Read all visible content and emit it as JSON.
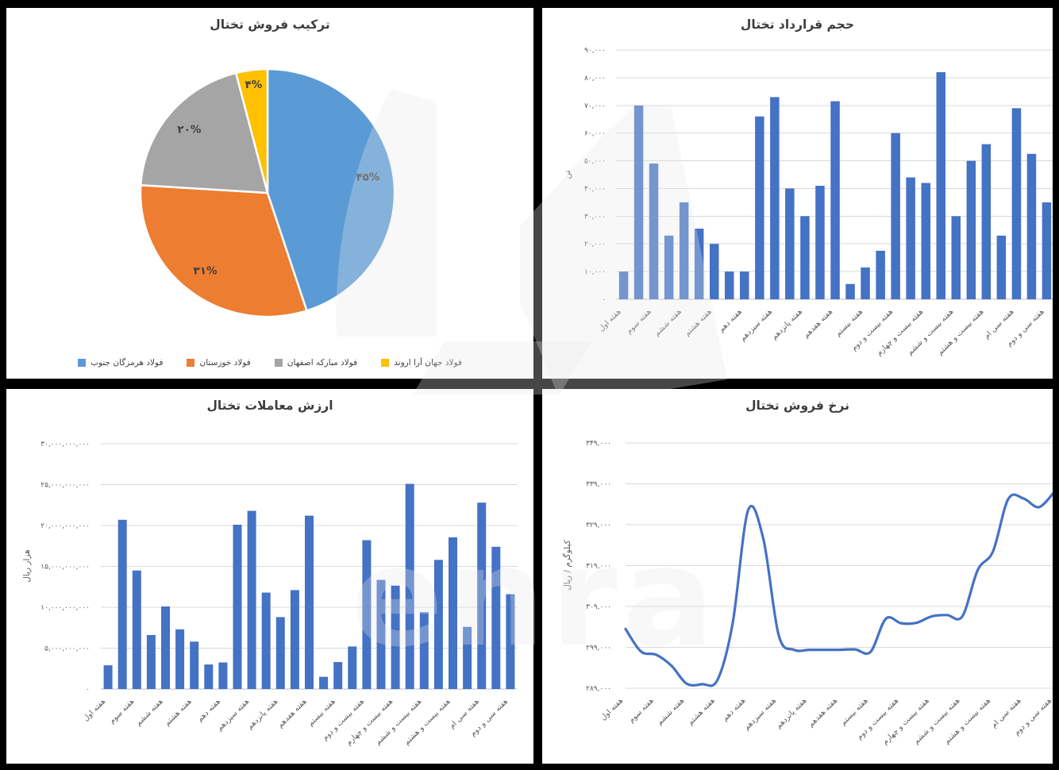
{
  "watermark": {
    "text": "enra"
  },
  "chart_data": [
    {
      "type": "pie",
      "title": "ترکیب فروش تختال",
      "labels": [
        "فولاد هرمزگان جنوب",
        "فولاد خوزستان",
        "فولاد مبارکه اصفهان",
        "فولاد جهان آرا اروند"
      ],
      "values": [
        45,
        31,
        20,
        4
      ],
      "display_labels": [
        "۴۵%",
        "۳۱%",
        "۲۰%",
        "۴%"
      ],
      "colors": [
        "#5B9BD5",
        "#ED7D31",
        "#A5A5A5",
        "#FFC000"
      ],
      "legend_position": "bottom",
      "start_angle_deg": 0,
      "direction": "clockwise"
    },
    {
      "type": "bar",
      "title": "حجم قرارداد تختال",
      "ylabel": "تن",
      "bar_color": "#4472C4",
      "ylim": [
        0,
        90000
      ],
      "grid": true,
      "yticks": [
        "۰",
        "۱۰,۰۰۰",
        "۲۰,۰۰۰",
        "۳۰,۰۰۰",
        "۴۰,۰۰۰",
        "۵۰,۰۰۰",
        "۶۰,۰۰۰",
        "۷۰,۰۰۰",
        "۸۰,۰۰۰",
        "۹۰,۰۰۰"
      ],
      "categories_shown": [
        "هفته اول",
        "هفته سوم",
        "هفته ششم",
        "هفته هشتم",
        "هفته دهم",
        "هفته سیزدهم",
        "هفته پانزدهم",
        "هفته هفدهم",
        "هفته بیستم",
        "هفته بیست و دوم",
        "هفته بیست و چهارم",
        "هفته بیست و ششم",
        "هفته بیست و هشتم",
        "هفته سی ام",
        "هفته سی و دوم"
      ],
      "category_tick_step": 2,
      "values": [
        10000,
        70000,
        49000,
        23000,
        35000,
        25500,
        20000,
        10000,
        10000,
        66000,
        73000,
        40000,
        30000,
        41000,
        71500,
        5500,
        11500,
        17500,
        60000,
        44000,
        42000,
        82000,
        30000,
        50000,
        56000,
        23000,
        69000,
        52500,
        35000
      ]
    },
    {
      "type": "bar",
      "title": "ارزش معاملات تختال",
      "ylabel": "هزار ریال",
      "bar_color": "#4472C4",
      "ylim": [
        0,
        30000000000
      ],
      "grid": true,
      "yticks": [
        "۰",
        "۵,۰۰۰,۰۰۰,۰۰۰",
        "۱۰,۰۰۰,۰۰۰,۰۰۰",
        "۱۵,۰۰۰,۰۰۰,۰۰۰",
        "۲۰,۰۰۰,۰۰۰,۰۰۰",
        "۲۵,۰۰۰,۰۰۰,۰۰۰",
        "۳۰,۰۰۰,۰۰۰,۰۰۰"
      ],
      "categories_shown": [
        "هفته اول",
        "هفته سوم",
        "هفته ششم",
        "هفته هشتم",
        "هفته دهم",
        "هفته سیزدهم",
        "هفته پانزدهم",
        "هفته هفدهم",
        "هفته بیستم",
        "هفته بیست و دوم",
        "هفته بیست و چهارم",
        "هفته بیست و ششم",
        "هفته بیست و هشتم",
        "هفته سی ام",
        "هفته سی و دوم"
      ],
      "category_tick_step": 2,
      "values": [
        2900000000,
        20700000000,
        14500000000,
        6600000000,
        10100000000,
        7300000000,
        5800000000,
        3000000000,
        3250000000,
        20100000000,
        21800000000,
        11800000000,
        8800000000,
        12100000000,
        21200000000,
        1500000000,
        3300000000,
        5200000000,
        18200000000,
        13350000000,
        12650000000,
        25100000000,
        9400000000,
        15800000000,
        18550000000,
        7600000000,
        22800000000,
        17400000000,
        11600000000
      ]
    },
    {
      "type": "line",
      "title": "نرخ فروش تختال",
      "ylabel": "کیلوگرم / ریال",
      "line_color": "#4472C4",
      "smooth": true,
      "grid": true,
      "ylim": [
        289000,
        349000
      ],
      "yticks": [
        "۲۸۹,۰۰۰",
        "۲۹۹,۰۰۰",
        "۳۰۹,۰۰۰",
        "۳۱۹,۰۰۰",
        "۳۲۹,۰۰۰",
        "۳۳۹,۰۰۰",
        "۳۴۹,۰۰۰"
      ],
      "categories_shown": [
        "هفته اول",
        "هفته سوم",
        "هفته ششم",
        "هفته هشتم",
        "هفته دهم",
        "هفته سیزدهم",
        "هفته پانزدهم",
        "هفته هفدهم",
        "هفته بیستم",
        "هفته بیست و دوم",
        "هفته بیست و چهارم",
        "هفته بیست و ششم",
        "هفته بیست و هشتم",
        "هفته سی ام",
        "هفته سی و دوم"
      ],
      "category_tick_step": 2,
      "values": [
        303500,
        298000,
        297200,
        294500,
        290100,
        290000,
        291000,
        305000,
        332500,
        325500,
        302000,
        298400,
        298400,
        298400,
        298400,
        298500,
        297900,
        306000,
        304900,
        305000,
        306600,
        306900,
        306600,
        317900,
        322500,
        335300,
        335400,
        333300,
        337000
      ]
    }
  ]
}
